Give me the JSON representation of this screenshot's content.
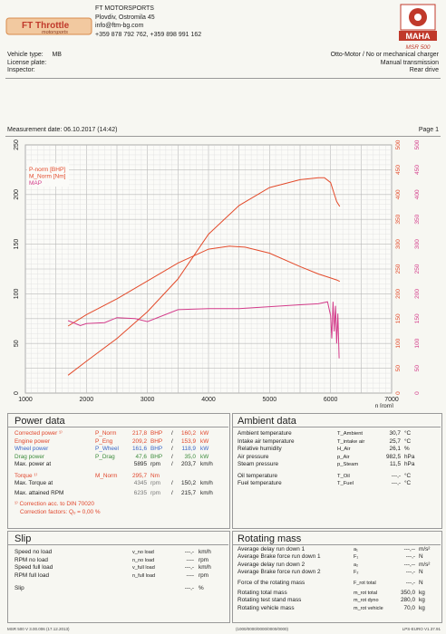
{
  "header": {
    "company": "FT MOTORSPORTS",
    "address": "Plovdiv, Ostromila 45",
    "email": "info@ftm-bg.com",
    "phones": "+359 878 792 762, +359 898 991 162",
    "logo_left_text_1": "FT Throttle",
    "logo_left_text_2": "motorsports",
    "logo_right_text": "MAHA",
    "logo_right_sub": "MSR 500"
  },
  "vehicle": {
    "type_label": "Vehicle type:",
    "type_value": "MB",
    "plate_label": "License plate:",
    "inspector_label": "Inspector:",
    "engine": "Otto-Motor / No or mechanical charger",
    "transmission": "Manual transmission",
    "drive": "Rear drive"
  },
  "measurement": {
    "date": "Measurement date: 06.10.2017 (14:42)",
    "page": "Page 1"
  },
  "chart_data": {
    "type": "line",
    "x_range": [
      1000,
      7000
    ],
    "x_ticks": [
      "1000",
      "2000",
      "3000",
      "4000",
      "5000",
      "6000",
      "7000"
    ],
    "x_unit": "n [rpm]",
    "y_left_range": [
      0,
      250
    ],
    "y_left_ticks": [
      "0",
      "50",
      "100",
      "150",
      "200",
      "250"
    ],
    "y_right_range": [
      0,
      500
    ],
    "y_right_ticks": [
      "0",
      "50",
      "100",
      "150",
      "200",
      "250",
      "300",
      "350",
      "400",
      "450",
      "500"
    ],
    "y_right2_ticks": [
      "0",
      "50",
      "100",
      "150",
      "200",
      "250",
      "300",
      "350",
      "400",
      "450",
      "500"
    ],
    "legend": [
      "P-norm [BHP]",
      "M_Norm [Nm]",
      "MAP"
    ],
    "series": [
      {
        "name": "P-norm [BHP]",
        "color": "#e34a2a",
        "axis": "left",
        "x": [
          1700,
          2000,
          2500,
          3000,
          3500,
          4000,
          4500,
          5000,
          5500,
          5800,
          5900,
          6000,
          6100,
          6150
        ],
        "y": [
          18,
          32,
          55,
          82,
          115,
          160,
          189,
          207,
          215,
          217,
          217,
          212,
          193,
          188
        ]
      },
      {
        "name": "M_Norm [Nm]",
        "color": "#e34a2a",
        "axis": "right",
        "x": [
          1700,
          2000,
          2500,
          3000,
          3500,
          4000,
          4345,
          4600,
          5000,
          5500,
          5800,
          6000,
          6100,
          6150
        ],
        "y": [
          135,
          158,
          190,
          226,
          262,
          290,
          296,
          294,
          282,
          255,
          240,
          232,
          228,
          225
        ]
      },
      {
        "name": "MAP",
        "color": "#d33b8a",
        "axis": "left",
        "x": [
          1700,
          1900,
          2000,
          2300,
          2500,
          2800,
          3000,
          3500,
          4000,
          4500,
          5000,
          5500,
          5800,
          5950,
          6000,
          6020,
          6040,
          6060,
          6080,
          6100,
          6120,
          6140
        ],
        "y": [
          73,
          68,
          70,
          71,
          76,
          75,
          72,
          84,
          85,
          85,
          87,
          89,
          90,
          92,
          78,
          55,
          92,
          62,
          88,
          50,
          80,
          35
        ]
      }
    ]
  },
  "power": {
    "title": "Power data",
    "rows": [
      {
        "label": "Corrected power ¹⁾",
        "sym": "P_Norm",
        "v1": "217,8",
        "u1": "BHP",
        "sep": "/",
        "v2": "160,2",
        "u2": "kW",
        "cls": "red"
      },
      {
        "label": "Engine power",
        "sym": "P_Eng",
        "v1": "209,2",
        "u1": "BHP",
        "sep": "/",
        "v2": "153,9",
        "u2": "kW",
        "cls": "red"
      },
      {
        "label": "Wheel power",
        "sym": "P_Wheel",
        "v1": "161,6",
        "u1": "BHP",
        "sep": "/",
        "v2": "118,9",
        "u2": "kW",
        "cls": "blue"
      },
      {
        "label": "Drag power",
        "sym": "P_Drag",
        "v1": "47,6",
        "u1": "BHP",
        "sep": "/",
        "v2": "35,0",
        "u2": "kW",
        "cls": "green"
      },
      {
        "label": "Max. power at",
        "sym": "",
        "v1": "5895",
        "u1": "rpm",
        "sep": "/",
        "v2": "203,7",
        "u2": "km/h",
        "cls": ""
      }
    ],
    "torque": {
      "label": "Torque ¹⁾",
      "sym": "M_Norm",
      "v": "295,7",
      "u": "Nm"
    },
    "torque_at": {
      "label": "Max. Torque at",
      "v1": "4345",
      "u1": "rpm",
      "sep": "/",
      "v2": "150,2",
      "u2": "km/h"
    },
    "max_rpm": {
      "label": "Max. attained RPM",
      "v1": "6235",
      "u1": "rpm",
      "sep": "/",
      "v2": "215,7",
      "u2": "km/h"
    },
    "note1": "¹⁾ Correction acc. to DIN 70020",
    "note2": "Correction factors: Qₒ =   0,00 %"
  },
  "ambient": {
    "title": "Ambient data",
    "rows": [
      {
        "label": "Ambient temperature",
        "sym": "T_Ambient",
        "v": "30,7",
        "u": "°C"
      },
      {
        "label": "Intake air temperature",
        "sym": "T_intake air",
        "v": "25,7",
        "u": "°C"
      },
      {
        "label": "Relative humidity",
        "sym": "H_Air",
        "v": "26,1",
        "u": "%"
      },
      {
        "label": "Air pressure",
        "sym": "p_Air",
        "v": "982,5",
        "u": "hPa"
      },
      {
        "label": "Steam pressure",
        "sym": "p_Steam",
        "v": "11,5",
        "u": "hPa"
      },
      {
        "label": "Oil temperature",
        "sym": "T_Oil",
        "v": "---,-",
        "u": "°C"
      },
      {
        "label": "Fuel temperature",
        "sym": "T_Fuel",
        "v": "---,-",
        "u": "°C"
      }
    ]
  },
  "slip": {
    "title": "Slip",
    "rows": [
      {
        "label": "Speed no load",
        "sym": "v_no load",
        "v": "---,-",
        "u": "km/h"
      },
      {
        "label": "RPM no load",
        "sym": "n_no load",
        "v": "----",
        "u": "rpm"
      },
      {
        "label": "Speed full load",
        "sym": "v_full load",
        "v": "---,-",
        "u": "km/h"
      },
      {
        "label": "RPM full load",
        "sym": "n_full load",
        "v": "----",
        "u": "rpm"
      },
      {
        "label": "Slip",
        "sym": "",
        "v": "---,-",
        "u": "%"
      }
    ]
  },
  "rotating": {
    "title": "Rotating mass",
    "rows": [
      {
        "label": "Average delay run down 1",
        "sym": "a₁",
        "v": "---,--",
        "u": "m/s²"
      },
      {
        "label": "Average Brake force run down 1",
        "sym": "F₁",
        "v": "---,-",
        "u": "N"
      },
      {
        "label": "Average delay run down 2",
        "sym": "a₂",
        "v": "---,--",
        "u": "m/s²"
      },
      {
        "label": "Average Brake force run down 2",
        "sym": "F₂",
        "v": "---,-",
        "u": "N"
      },
      {
        "label": "Force of the rotating mass",
        "sym": "F_rot total",
        "v": "---,-",
        "u": "N"
      },
      {
        "label": "Rotating total mass",
        "sym": "m_rot total",
        "v": "350,0",
        "u": "kg"
      },
      {
        "label": "Rotating test stand mass",
        "sym": "m_rot dyno",
        "v": "280,0",
        "u": "kg"
      },
      {
        "label": "Rotating vehicle mass",
        "sym": "m_rot vehicle",
        "v": "70,0",
        "u": "kg"
      }
    ]
  },
  "footer": {
    "left": "MSR 500 V 3.00.006 (17.12.2013)",
    "mid": "(1000/0000/0000/0000/0000)",
    "right": "LPS-EURO V1.37.91"
  }
}
